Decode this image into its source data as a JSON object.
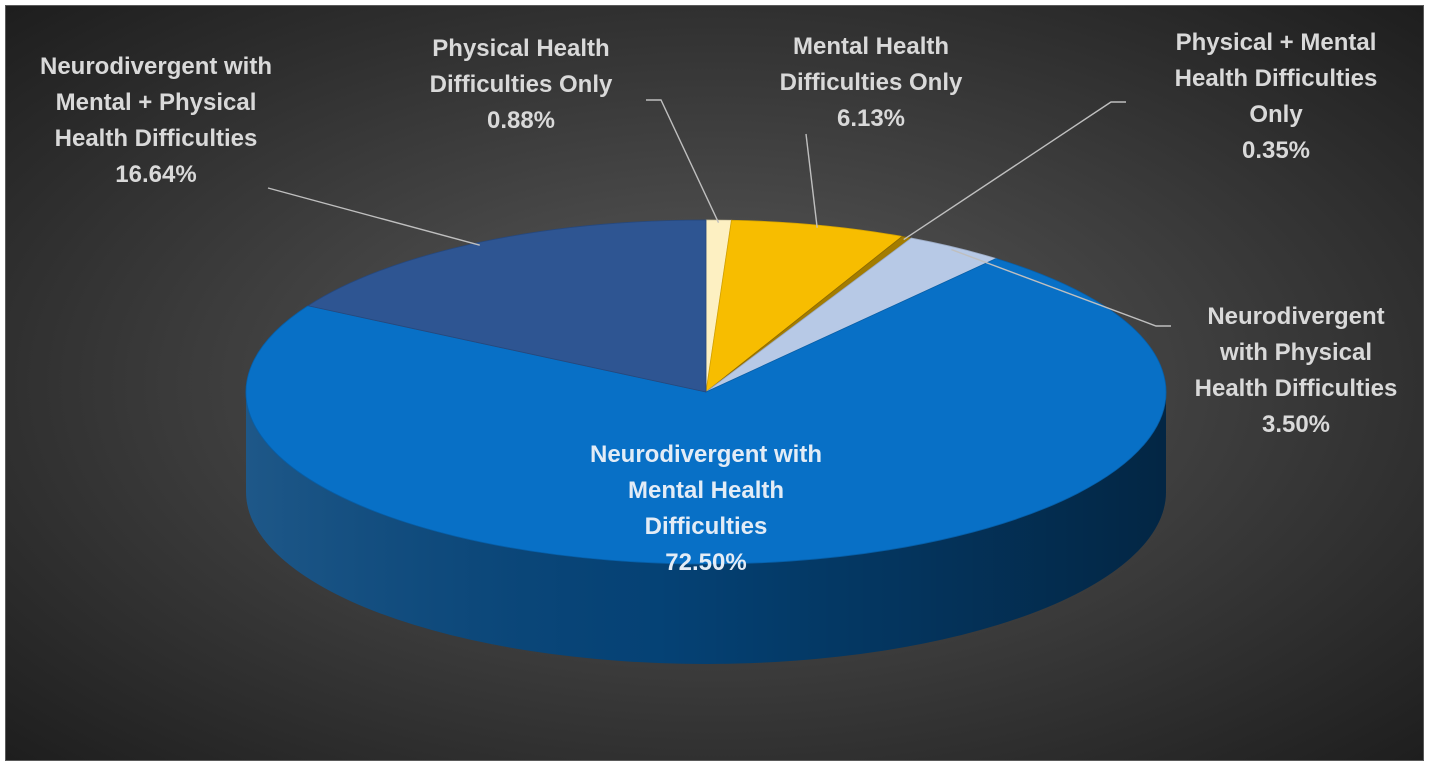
{
  "chart_data": {
    "type": "pie",
    "style": "3d",
    "start_angle_deg": 0,
    "direction": "clockwise",
    "background": [
      "#5c5c5c",
      "#1a1a1a"
    ],
    "slices": [
      {
        "id": "physical-only",
        "name": [
          "Physical Health",
          "Difficulties Only"
        ],
        "value": 0.88,
        "value_label": "0.88%",
        "color": "#fdf0c2",
        "label_style": "outside"
      },
      {
        "id": "mental-only",
        "name": [
          "Mental Health",
          "Difficulties Only"
        ],
        "value": 6.13,
        "value_label": "6.13%",
        "color": "#f7bd00",
        "label_style": "outside"
      },
      {
        "id": "physical-mental-only",
        "name": [
          "Physical + Mental",
          "Health Difficulties",
          "Only"
        ],
        "value": 0.35,
        "value_label": "0.35%",
        "color": "#a37c00",
        "label_style": "outside"
      },
      {
        "id": "nd-physical",
        "name": [
          "Neurodivergent",
          "with Physical",
          "Health Difficulties"
        ],
        "value": 3.5,
        "value_label": "3.50%",
        "color": "#b7c9e6",
        "label_style": "outside"
      },
      {
        "id": "nd-mental",
        "name": [
          "Neurodivergent with",
          "Mental Health",
          "Difficulties"
        ],
        "value": 72.5,
        "value_label": "72.50%",
        "color": "#0870c6",
        "label_style": "inside"
      },
      {
        "id": "nd-mental-physical",
        "name": [
          "Neurodivergent with",
          "Mental + Physical",
          "Health Difficulties"
        ],
        "value": 16.64,
        "value_label": "16.64%",
        "color": "#2e5592",
        "label_style": "outside"
      }
    ]
  }
}
